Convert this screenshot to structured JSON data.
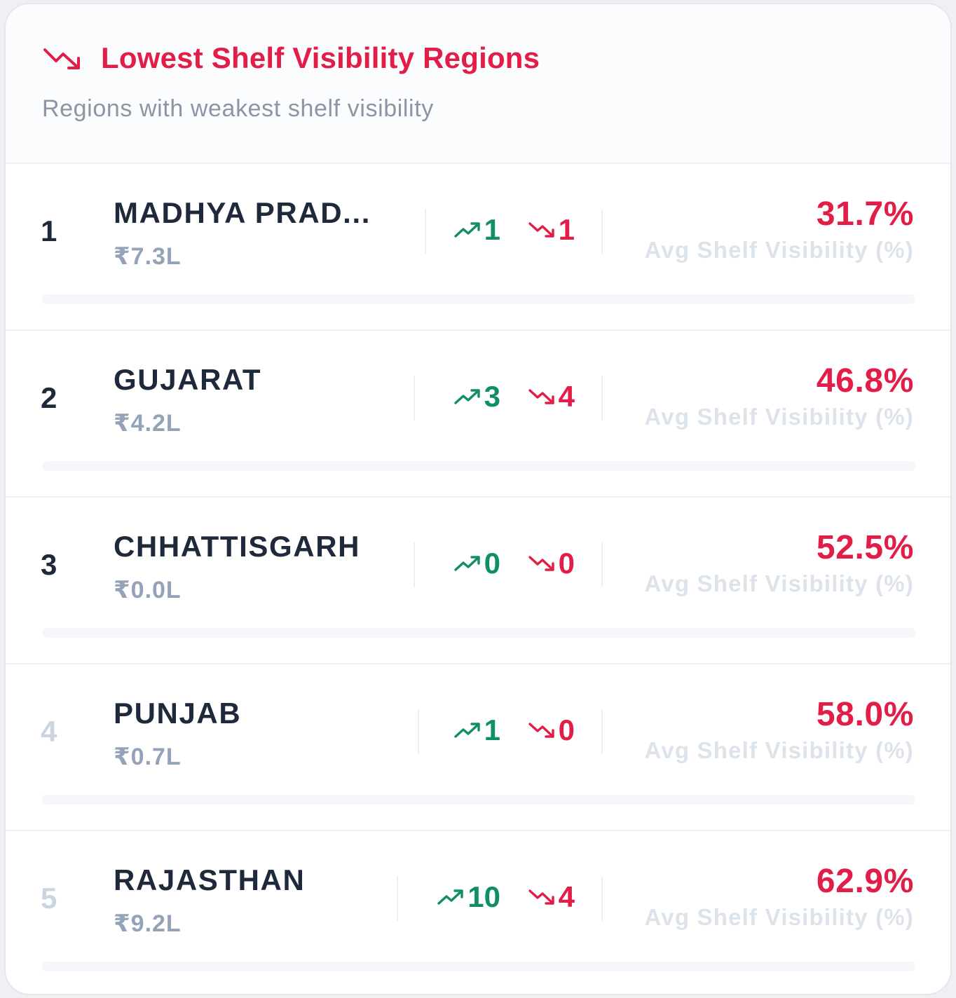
{
  "header": {
    "icon": "trending-down-icon",
    "title": "Lowest Shelf Visibility Regions",
    "subtitle": "Regions with weakest shelf visibility"
  },
  "colors": {
    "accent_red": "#e11d48",
    "positive_green": "#109062",
    "heading_text": "#1e293b",
    "muted_text": "#94a3b8"
  },
  "regions": [
    {
      "rank": "1",
      "name": "MADHYA PRAD...",
      "amount": "₹7.3L",
      "up": "1",
      "down": "1",
      "pct": "31.7%",
      "pct_label": "Avg Shelf Visibility (%)",
      "value": 31.7
    },
    {
      "rank": "2",
      "name": "GUJARAT",
      "amount": "₹4.2L",
      "up": "3",
      "down": "4",
      "pct": "46.8%",
      "pct_label": "Avg Shelf Visibility (%)",
      "value": 46.8
    },
    {
      "rank": "3",
      "name": "CHHATTISGARH",
      "amount": "₹0.0L",
      "up": "0",
      "down": "0",
      "pct": "52.5%",
      "pct_label": "Avg Shelf Visibility (%)",
      "value": 52.5
    },
    {
      "rank": "4",
      "name": "PUNJAB",
      "amount": "₹0.7L",
      "up": "1",
      "down": "0",
      "pct": "58.0%",
      "pct_label": "Avg Shelf Visibility (%)",
      "value": 58.0
    },
    {
      "rank": "5",
      "name": "RAJASTHAN",
      "amount": "₹9.2L",
      "up": "10",
      "down": "4",
      "pct": "62.9%",
      "pct_label": "Avg Shelf Visibility (%)",
      "value": 62.9
    }
  ]
}
